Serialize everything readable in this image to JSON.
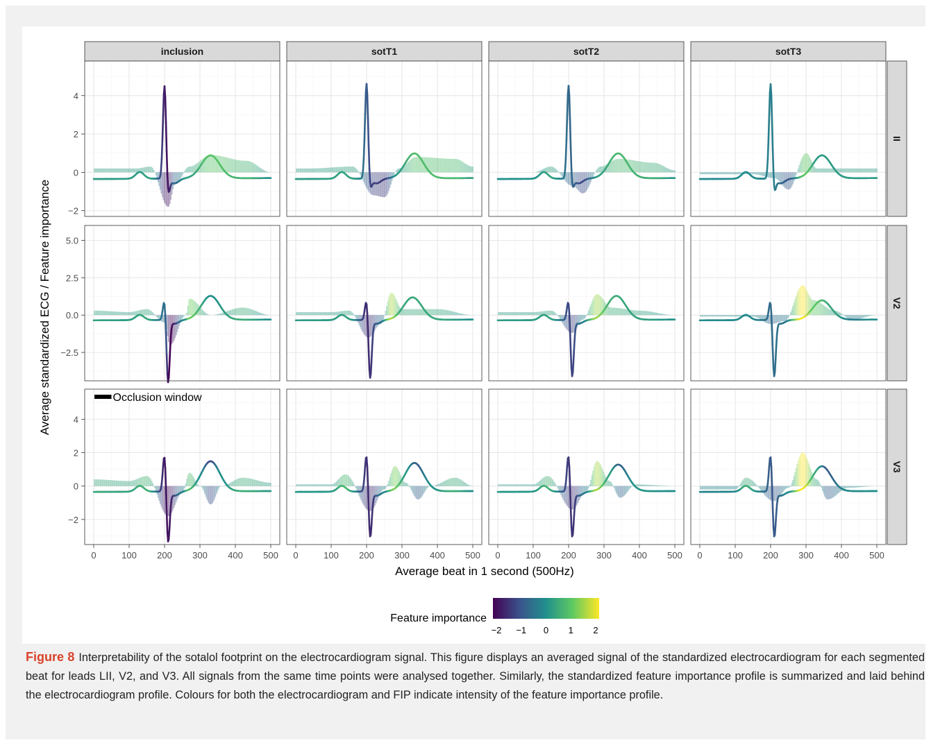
{
  "figure": {
    "label": "Figure 8",
    "caption": "Interpretability of the sotalol footprint on the electrocardiogram signal. This figure displays an averaged signal of the standardized electrocardiogram for each segmented beat for leads LII, V2, and V3. All signals from the same time points were analysed together. Similarly, the standardized feature importance profile is summarized and laid behind the electrocardiogram profile. Colours for both the electrocardiogram and FIP indicate intensity of the feature importance profile."
  },
  "chart_data": {
    "type": "line",
    "xlabel": "Average beat in 1 second (500Hz)",
    "ylabel": "Average standardized ECG / Feature importance",
    "xlim": [
      0,
      500
    ],
    "x_ticks": [
      0,
      100,
      200,
      300,
      400,
      500
    ],
    "columns": [
      "inclusion",
      "sotT1",
      "sotT2",
      "sotT3"
    ],
    "rows": [
      {
        "lead": "II",
        "ylim": [
          -2.3,
          5.8
        ],
        "y_ticks": [
          -2,
          0,
          2,
          4
        ],
        "y_tick_labels": [
          "−2",
          "0",
          "2",
          "4"
        ]
      },
      {
        "lead": "V2",
        "ylim": [
          -4.4,
          6.0
        ],
        "y_ticks": [
          -2.5,
          0,
          2.5,
          5
        ],
        "y_tick_labels": [
          "−2.5",
          "0.0",
          "2.5",
          "5.0"
        ]
      },
      {
        "lead": "V3",
        "ylim": [
          -3.5,
          5.8
        ],
        "y_ticks": [
          -2,
          0,
          2,
          4
        ],
        "y_tick_labels": [
          "−2",
          "0",
          "2",
          "4"
        ]
      }
    ],
    "annotation": "Occlusion window",
    "legend": {
      "title": "Feature importance",
      "ticks": [
        -2,
        -1,
        0,
        1,
        2
      ],
      "tick_labels": [
        "−2",
        "−1",
        "0",
        "1",
        "2"
      ],
      "colors": [
        "#440154",
        "#3b528b",
        "#21908c",
        "#5ec962",
        "#fde725"
      ],
      "placement": "bottom"
    },
    "panels": {
      "II": {
        "ecg": {
          "p": 0.3,
          "qrs": 4.9,
          "s": -0.8,
          "t": 1.2,
          "baseline": -0.3,
          "r_color": -1.8,
          "t_color": 0.3
        },
        "inclusion": {
          "r": 4.9,
          "s": -0.8,
          "t": 1.2,
          "tx": 330,
          "fip": [
            [
              120,
              0.2
            ],
            [
              160,
              0.3
            ],
            [
              210,
              -1.8
            ],
            [
              230,
              -0.6
            ],
            [
              270,
              0.3
            ],
            [
              330,
              0.9
            ],
            [
              430,
              0.6
            ],
            [
              500,
              0
            ]
          ]
        },
        "sotT1": {
          "r": 5.0,
          "s": -0.5,
          "t": 1.3,
          "tx": 335,
          "fip": [
            [
              40,
              0.2
            ],
            [
              160,
              0.3
            ],
            [
              220,
              -1.2
            ],
            [
              250,
              -1.3
            ],
            [
              290,
              0.2
            ],
            [
              340,
              0.8
            ],
            [
              450,
              0.7
            ],
            [
              500,
              0.3
            ]
          ]
        },
        "sotT2": {
          "r": 4.9,
          "s": -0.5,
          "t": 1.3,
          "tx": 340,
          "fip": [
            [
              100,
              0
            ],
            [
              150,
              0.3
            ],
            [
              210,
              -0.7
            ],
            [
              240,
              -1.1
            ],
            [
              290,
              0.3
            ],
            [
              340,
              0.7
            ],
            [
              440,
              0.5
            ],
            [
              500,
              0.1
            ]
          ]
        },
        "sotT3": {
          "r": 5.0,
          "s": -0.7,
          "t": 1.2,
          "tx": 345,
          "fip": [
            [
              50,
              -0.1
            ],
            [
              150,
              -0.1
            ],
            [
              210,
              -0.3
            ],
            [
              250,
              -0.9
            ],
            [
              300,
              1.0
            ],
            [
              330,
              0.2
            ],
            [
              490,
              0.2
            ]
          ]
        }
      },
      "V2": {
        "inclusion": {
          "r": 1.4,
          "s": -4.2,
          "t": 1.6,
          "tx": 330,
          "fip": [
            [
              0,
              0.3
            ],
            [
              100,
              0.2
            ],
            [
              150,
              0.4
            ],
            [
              200,
              -0.5
            ],
            [
              215,
              -2.0
            ],
            [
              260,
              0
            ],
            [
              270,
              1.1
            ],
            [
              330,
              0
            ],
            [
              420,
              0.5
            ],
            [
              500,
              0
            ]
          ]
        },
        "sotT1": {
          "r": 1.4,
          "s": -3.9,
          "t": 1.5,
          "tx": 330,
          "fip": [
            [
              100,
              0.2
            ],
            [
              150,
              0.3
            ],
            [
              205,
              -1.5
            ],
            [
              240,
              -0.6
            ],
            [
              270,
              1.5
            ],
            [
              300,
              0.4
            ],
            [
              330,
              0.4
            ],
            [
              400,
              0.4
            ],
            [
              500,
              0
            ]
          ]
        },
        "sotT2": {
          "r": 1.4,
          "s": -3.8,
          "t": 1.6,
          "tx": 335,
          "fip": [
            [
              100,
              0.2
            ],
            [
              150,
              0.3
            ],
            [
              210,
              -1.2
            ],
            [
              240,
              -0.3
            ],
            [
              280,
              1.4
            ],
            [
              320,
              0.5
            ],
            [
              400,
              0.3
            ],
            [
              500,
              0
            ]
          ]
        },
        "sotT3": {
          "r": 1.4,
          "s": -3.8,
          "t": 1.3,
          "tx": 345,
          "fip": [
            [
              50,
              -0.1
            ],
            [
              150,
              -0.1
            ],
            [
              200,
              -0.6
            ],
            [
              240,
              -0.4
            ],
            [
              290,
              2.0
            ],
            [
              320,
              1.0
            ],
            [
              380,
              0.3
            ],
            [
              430,
              -0.3
            ],
            [
              500,
              0
            ]
          ]
        }
      },
      "V3": {
        "inclusion": {
          "r": 2.3,
          "s": -3.1,
          "t": 1.8,
          "tx": 330,
          "fip": [
            [
              0,
              0.4
            ],
            [
              100,
              0.3
            ],
            [
              150,
              0.6
            ],
            [
              210,
              -1.8
            ],
            [
              250,
              -0.4
            ],
            [
              270,
              0.8
            ],
            [
              300,
              0
            ],
            [
              330,
              -1.1
            ],
            [
              360,
              0
            ],
            [
              420,
              0.5
            ],
            [
              500,
              0.2
            ]
          ]
        },
        "sotT1": {
          "r": 2.3,
          "s": -2.8,
          "t": 1.7,
          "tx": 335,
          "fip": [
            [
              100,
              0.1
            ],
            [
              140,
              0.7
            ],
            [
              210,
              -1.5
            ],
            [
              250,
              -0.2
            ],
            [
              280,
              1.2
            ],
            [
              310,
              0.2
            ],
            [
              345,
              -0.8
            ],
            [
              380,
              0
            ],
            [
              450,
              0.5
            ],
            [
              500,
              0
            ]
          ]
        },
        "sotT2": {
          "r": 2.3,
          "s": -2.8,
          "t": 1.6,
          "tx": 340,
          "fip": [
            [
              100,
              0.1
            ],
            [
              140,
              0.6
            ],
            [
              210,
              -1.4
            ],
            [
              250,
              -0.3
            ],
            [
              280,
              1.5
            ],
            [
              315,
              0.3
            ],
            [
              345,
              -0.7
            ],
            [
              390,
              0.1
            ],
            [
              500,
              0
            ]
          ]
        },
        "sotT3": {
          "r": 2.3,
          "s": -2.8,
          "t": 1.5,
          "tx": 345,
          "fip": [
            [
              0,
              -0.2
            ],
            [
              100,
              -0.2
            ],
            [
              130,
              0.5
            ],
            [
              210,
              -0.9
            ],
            [
              250,
              -0.1
            ],
            [
              290,
              2.0
            ],
            [
              330,
              0.4
            ],
            [
              360,
              -0.8
            ],
            [
              420,
              -0.1
            ],
            [
              500,
              0
            ]
          ]
        }
      }
    }
  }
}
